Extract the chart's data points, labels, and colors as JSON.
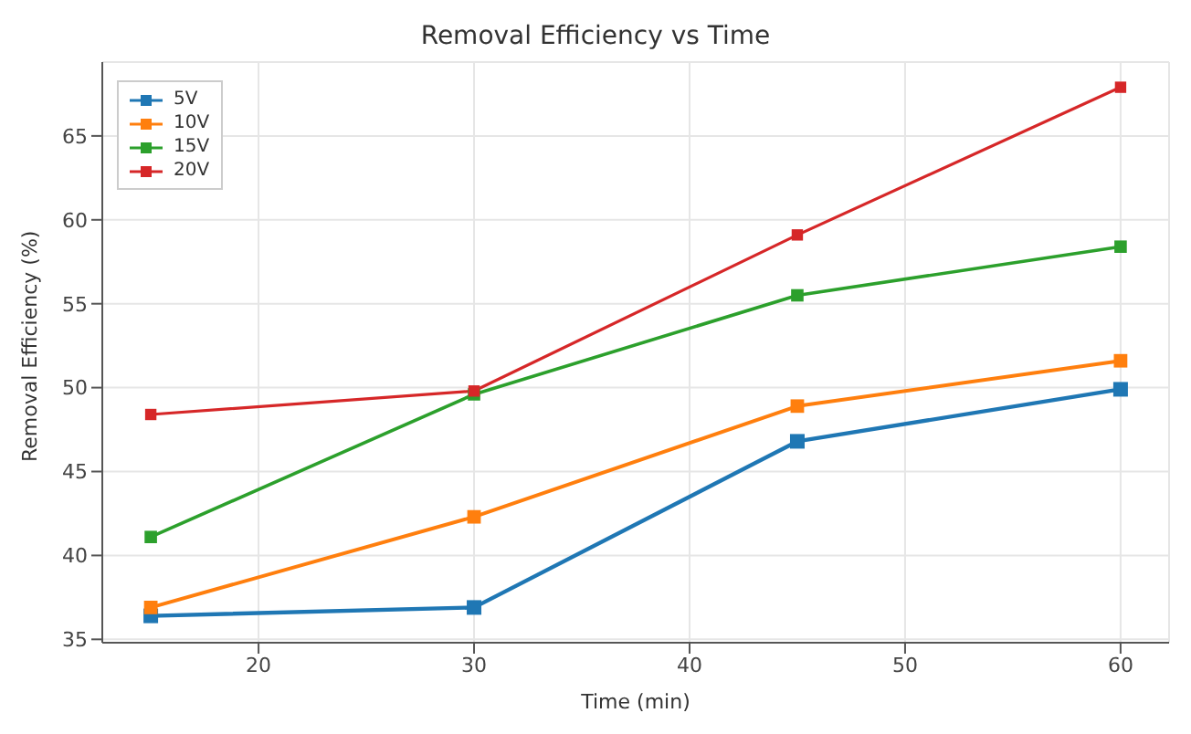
{
  "chart_data": {
    "type": "line",
    "title": "Removal Efficiency vs Time",
    "xlabel": "Time (min)",
    "ylabel": "Removal Efficiency (%)",
    "x": [
      15,
      30,
      45,
      60
    ],
    "series": [
      {
        "name": "5V",
        "color": "#1f77b4",
        "values": [
          36.4,
          36.9,
          46.8,
          49.9
        ]
      },
      {
        "name": "10V",
        "color": "#ff7f0e",
        "values": [
          36.9,
          42.3,
          48.9,
          51.6
        ]
      },
      {
        "name": "15V",
        "color": "#2ca02c",
        "values": [
          41.1,
          49.6,
          55.5,
          58.4
        ]
      },
      {
        "name": "20V",
        "color": "#d62728",
        "values": [
          48.4,
          49.8,
          59.1,
          67.9
        ]
      }
    ],
    "xlim": [
      12.75,
      62.25
    ],
    "xticks": [
      20,
      30,
      40,
      50,
      60
    ],
    "ylim": [
      34.8,
      69.4
    ],
    "yticks": [
      35,
      40,
      45,
      50,
      55,
      60,
      65
    ],
    "grid": true,
    "legend": "top left",
    "marker": "square",
    "line_style": "solid"
  }
}
